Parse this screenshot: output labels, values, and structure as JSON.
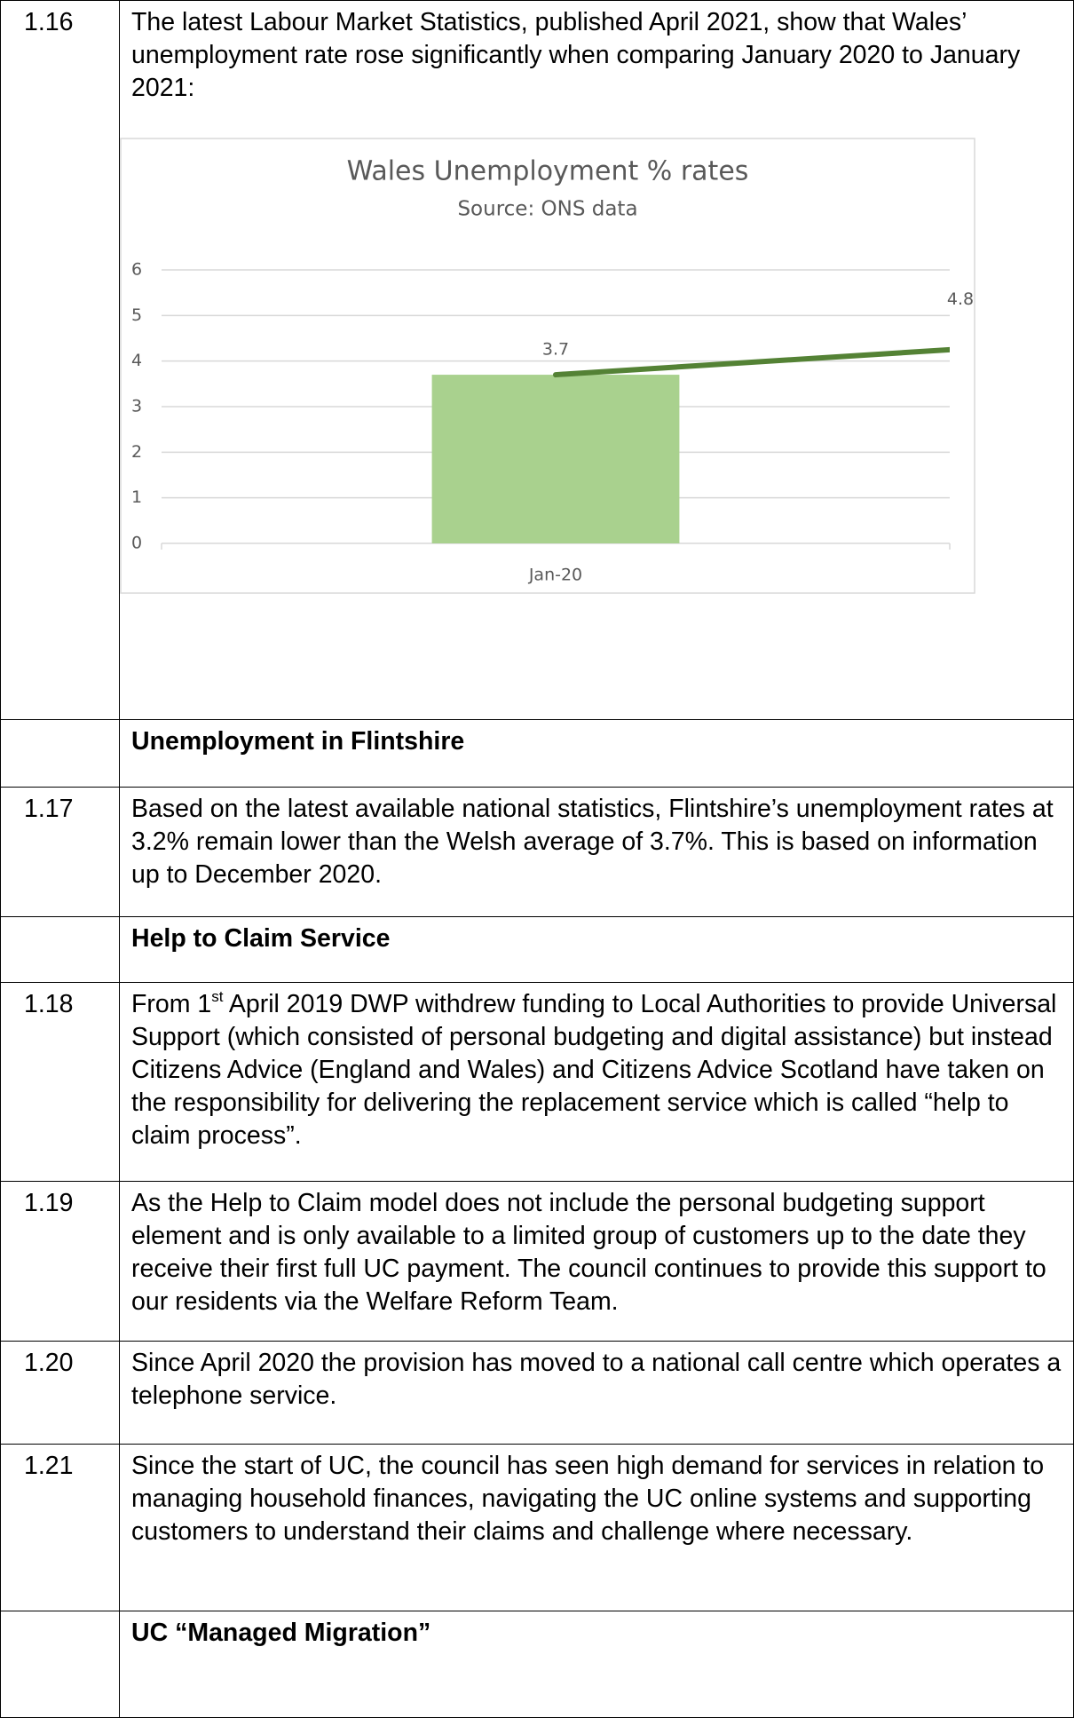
{
  "rows": [
    {
      "number": "1.16",
      "text": "The latest Labour Market Statistics, published April 2021, show that Wales’ unemployment rate rose significantly when comparing January 2020 to January 2021:"
    },
    {
      "heading": "Unemployment in Flintshire"
    },
    {
      "number": "1.17",
      "text": "Based on the latest available national statistics, Flintshire’s unemployment rates at 3.2% remain lower than the Welsh average of 3.7%.  This is based on information up to December 2020."
    },
    {
      "heading": "Help to Claim Service"
    },
    {
      "number": "1.18",
      "text_start": "From 1",
      "superscript": "st",
      "text_end": " April 2019 DWP withdrew funding to Local Authorities to provide Universal Support (which consisted of personal budgeting and digital assistance) but instead Citizens Advice (England and Wales) and Citizens Advice Scotland have taken on the responsibility for delivering the replacement service which is called “help to claim process”."
    },
    {
      "number": "1.19",
      "text": "As the Help to Claim model does not include the personal budgeting support element and is only available to a limited group of customers up to the date they receive their first full UC payment. The council continues to provide this support to our residents via the Welfare Reform Team."
    },
    {
      "number": "1.20",
      "text": "Since April 2020 the provision has moved to a national call centre which operates a telephone service."
    },
    {
      "number": "1.21",
      "text": "Since the start of UC, the council has seen high demand for services in relation to managing household finances, navigating the UC online systems and supporting customers to understand their claims and challenge where necessary."
    },
    {
      "heading": "UC “Managed Migration”"
    }
  ],
  "chart_data": {
    "type": "bar",
    "title": "Wales Unemployment % rates",
    "subtitle": "Source: ONS data",
    "categories": [
      "Jan-20",
      null
    ],
    "series": [
      {
        "type": "bar",
        "color": "#a9d18e",
        "values": [
          3.7,
          null
        ]
      },
      {
        "type": "line",
        "color": "#548235",
        "values": [
          3.7,
          4.8
        ]
      }
    ],
    "ylim": [
      0,
      6
    ],
    "yticks": [
      0,
      1,
      2,
      3,
      4,
      5,
      6
    ],
    "grid": true
  }
}
